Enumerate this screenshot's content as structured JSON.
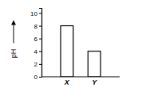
{
  "chart_data": {
    "type": "bar",
    "y_label": "pH",
    "categories": [
      "X",
      "Y"
    ],
    "values": [
      8,
      4
    ],
    "color": "#ffffff",
    "ylim": [
      0,
      10.8
    ],
    "yticks": [
      0,
      2,
      4,
      6,
      8,
      10
    ],
    "grid": false
  }
}
